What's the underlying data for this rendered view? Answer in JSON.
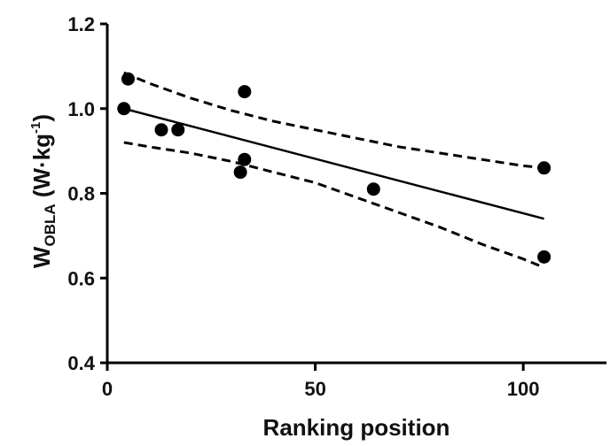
{
  "chart_data": {
    "type": "scatter",
    "title": "",
    "xlabel": "Ranking position",
    "ylabel": {
      "main": "W",
      "subscript": "OBLA",
      "unit_prefix": " (W·kg",
      "unit_superscript": "-1",
      "unit_suffix": ")"
    },
    "xlim": [
      0,
      120
    ],
    "ylim": [
      0.4,
      1.2
    ],
    "xticks": [
      0,
      50,
      100
    ],
    "xtick_labels": [
      "0",
      "50",
      "100"
    ],
    "yticks": [
      0.4,
      0.6,
      0.8,
      1.0,
      1.2
    ],
    "ytick_labels": [
      "0.4",
      "0.6",
      "0.8",
      "1.0",
      "1.2"
    ],
    "grid": false,
    "legend": "none",
    "points": [
      {
        "x": 4,
        "y": 1.0
      },
      {
        "x": 5,
        "y": 1.07
      },
      {
        "x": 13,
        "y": 0.95
      },
      {
        "x": 17,
        "y": 0.95
      },
      {
        "x": 32,
        "y": 0.85
      },
      {
        "x": 33,
        "y": 0.88
      },
      {
        "x": 33,
        "y": 1.04
      },
      {
        "x": 64,
        "y": 0.81
      },
      {
        "x": 105,
        "y": 0.86
      },
      {
        "x": 105,
        "y": 0.65
      }
    ],
    "regression_line": {
      "x": [
        4,
        105
      ],
      "y": [
        1.0,
        0.74
      ]
    },
    "confidence_band_upper": {
      "x": [
        4,
        10,
        20,
        30,
        40,
        50,
        60,
        70,
        80,
        90,
        100,
        105
      ],
      "y": [
        1.085,
        1.06,
        1.025,
        0.995,
        0.97,
        0.95,
        0.93,
        0.91,
        0.895,
        0.88,
        0.865,
        0.86
      ]
    },
    "confidence_band_lower": {
      "x": [
        4,
        10,
        20,
        30,
        40,
        50,
        60,
        70,
        80,
        90,
        100,
        105
      ],
      "y": [
        0.92,
        0.91,
        0.895,
        0.875,
        0.85,
        0.825,
        0.79,
        0.755,
        0.72,
        0.68,
        0.645,
        0.625
      ]
    },
    "colors": {
      "marks": "#000000",
      "background": "#ffffff"
    }
  }
}
